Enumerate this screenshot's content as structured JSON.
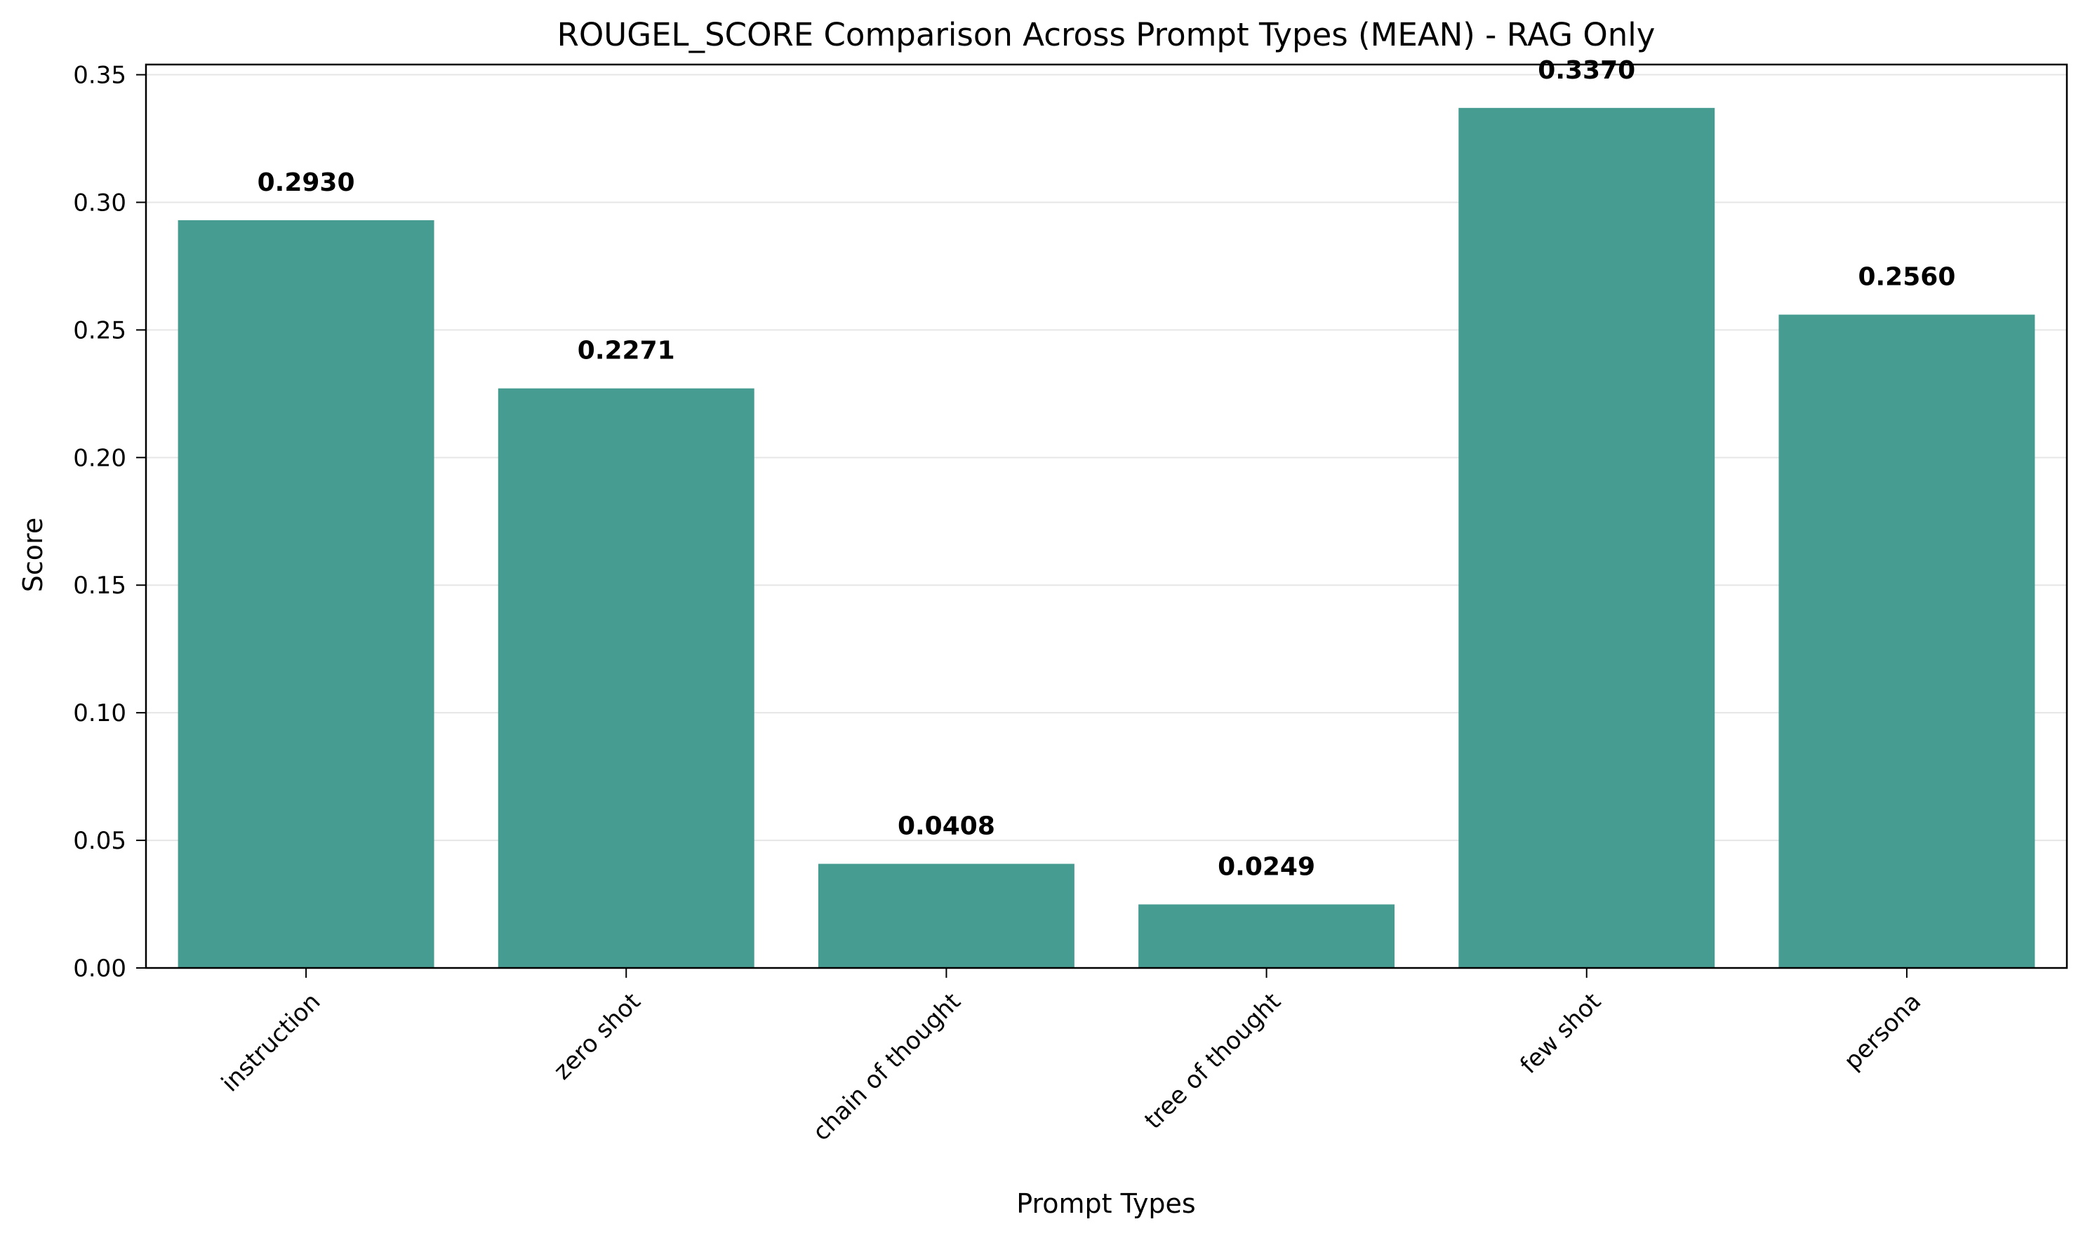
{
  "chart_data": {
    "type": "bar",
    "title": "ROUGEL_SCORE Comparison Across Prompt Types (MEAN) - RAG Only",
    "xlabel": "Prompt Types",
    "ylabel": "Score",
    "categories": [
      "instruction",
      "zero shot",
      "chain of thought",
      "tree of thought",
      "few shot",
      "persona"
    ],
    "values": [
      0.293,
      0.2271,
      0.0408,
      0.0249,
      0.337,
      0.256
    ],
    "value_labels": [
      "0.2930",
      "0.2271",
      "0.0408",
      "0.0249",
      "0.3370",
      "0.2560"
    ],
    "y_ticks": [
      0.0,
      0.05,
      0.1,
      0.15,
      0.2,
      0.25,
      0.3,
      0.35
    ],
    "y_tick_labels": [
      "0.00",
      "0.05",
      "0.10",
      "0.15",
      "0.20",
      "0.25",
      "0.30",
      "0.35"
    ],
    "ylim": [
      0,
      0.354
    ],
    "grid": "y-axis horizontal",
    "bar_color": "#479C91",
    "grid_color": "#E6E6E6",
    "axis_color": "#000000"
  }
}
